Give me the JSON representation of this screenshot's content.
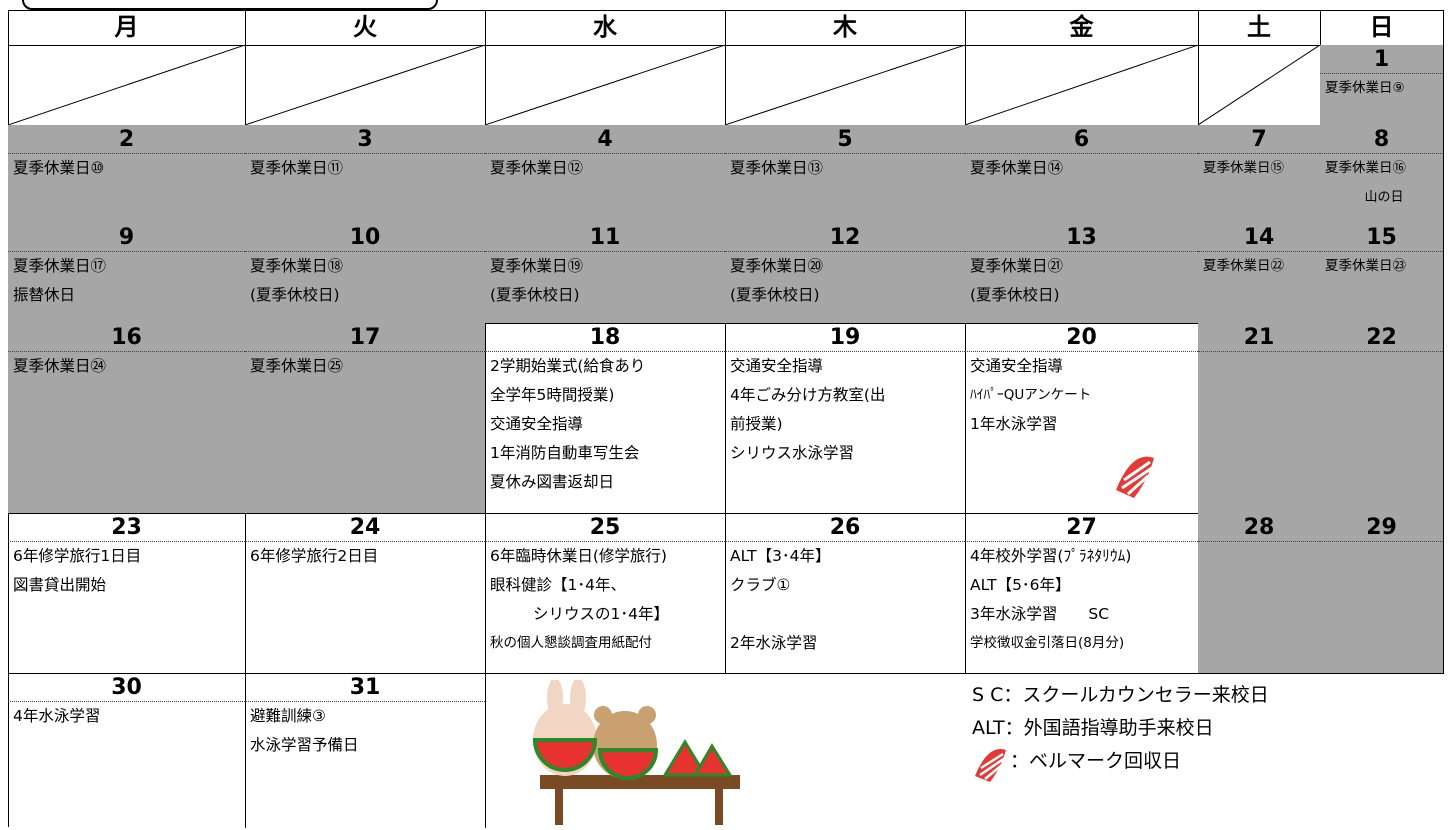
{
  "weekdays": [
    "月",
    "火",
    "水",
    "木",
    "金",
    "土",
    "日"
  ],
  "weeks": [
    [
      null,
      null,
      null,
      null,
      null,
      null,
      {
        "day": "1",
        "shaded": true,
        "lines": [
          "夏季休業日⑨"
        ]
      }
    ],
    [
      {
        "day": "2",
        "shaded": true,
        "lines": [
          "夏季休業日⑩"
        ]
      },
      {
        "day": "3",
        "shaded": true,
        "lines": [
          "夏季休業日⑪"
        ]
      },
      {
        "day": "4",
        "shaded": true,
        "lines": [
          "夏季休業日⑫"
        ]
      },
      {
        "day": "5",
        "shaded": true,
        "lines": [
          "夏季休業日⑬"
        ]
      },
      {
        "day": "6",
        "shaded": true,
        "lines": [
          "夏季休業日⑭"
        ]
      },
      {
        "day": "7",
        "shaded": true,
        "lines": [
          "夏季休業日⑮"
        ]
      },
      {
        "day": "8",
        "shaded": true,
        "lines": [
          "夏季休業日⑯",
          "山の日"
        ]
      }
    ],
    [
      {
        "day": "9",
        "shaded": true,
        "lines": [
          "夏季休業日⑰",
          "振替休日"
        ]
      },
      {
        "day": "10",
        "shaded": true,
        "lines": [
          "夏季休業日⑱",
          "(夏季休校日)"
        ]
      },
      {
        "day": "11",
        "shaded": true,
        "lines": [
          "夏季休業日⑲",
          "(夏季休校日)"
        ]
      },
      {
        "day": "12",
        "shaded": true,
        "lines": [
          "夏季休業日⑳",
          "(夏季休校日)"
        ]
      },
      {
        "day": "13",
        "shaded": true,
        "lines": [
          "夏季休業日㉑",
          "(夏季休校日)"
        ]
      },
      {
        "day": "14",
        "shaded": true,
        "lines": [
          "夏季休業日㉒"
        ]
      },
      {
        "day": "15",
        "shaded": true,
        "lines": [
          "夏季休業日㉓"
        ]
      }
    ],
    [
      {
        "day": "16",
        "shaded": true,
        "lines": [
          "夏季休業日㉔"
        ]
      },
      {
        "day": "17",
        "shaded": true,
        "lines": [
          "夏季休業日㉕"
        ]
      },
      {
        "day": "18",
        "shaded": false,
        "lines": [
          "2学期始業式(給食あり",
          "全学年5時間授業)",
          "交通安全指導",
          "1年消防自動車写生会",
          "夏休み図書返却日"
        ]
      },
      {
        "day": "19",
        "shaded": false,
        "lines": [
          "交通安全指導",
          "4年ごみ分け方教室(出",
          "前授業)",
          "シリウス水泳学習"
        ]
      },
      {
        "day": "20",
        "shaded": false,
        "lines": [
          "交通安全指導",
          "ﾊｲﾊﾟｰQUアンケート",
          "1年水泳学習"
        ]
      },
      {
        "day": "21",
        "shaded": true,
        "lines": []
      },
      {
        "day": "22",
        "shaded": true,
        "lines": []
      }
    ],
    [
      {
        "day": "23",
        "shaded": false,
        "lines": [
          "6年修学旅行1日目",
          "図書貸出開始"
        ]
      },
      {
        "day": "24",
        "shaded": false,
        "lines": [
          "6年修学旅行2日目"
        ]
      },
      {
        "day": "25",
        "shaded": false,
        "lines": [
          "6年臨時休業日(修学旅行)",
          "眼科健診【1･4年、",
          "シリウスの1･4年】",
          "秋の個人懇談調査用紙配付"
        ]
      },
      {
        "day": "26",
        "shaded": false,
        "lines": [
          "ALT【3･4年】",
          "クラブ①",
          "",
          "2年水泳学習"
        ]
      },
      {
        "day": "27",
        "shaded": false,
        "lines": [
          "4年校外学習(ﾌﾟﾗﾈﾀﾘｳﾑ)",
          "ALT【5･6年】",
          "3年水泳学習　　SC",
          "学校徴収金引落日(8月分)"
        ]
      },
      {
        "day": "28",
        "shaded": true,
        "lines": []
      },
      {
        "day": "29",
        "shaded": true,
        "lines": []
      }
    ],
    [
      {
        "day": "30",
        "shaded": false,
        "lines": [
          "4年水泳学習"
        ]
      },
      {
        "day": "31",
        "shaded": false,
        "lines": [
          "避難訓練③",
          "水泳学習予備日"
        ]
      }
    ]
  ],
  "legend": [
    "S C：スクールカウンセラー来校日",
    "ALT：外国語指導助手来校日",
    "：ベルマーク回収日"
  ]
}
